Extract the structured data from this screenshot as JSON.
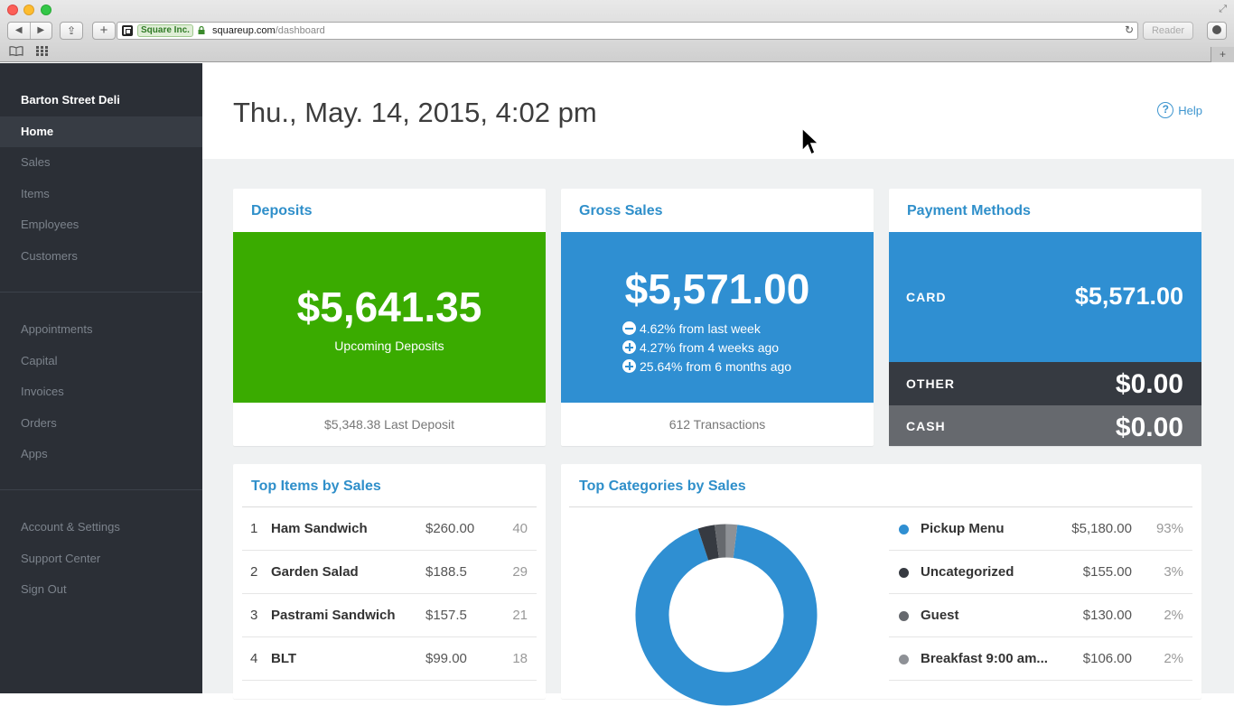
{
  "browser": {
    "site_identity": "Square Inc.",
    "url_domain": "squareup.com",
    "url_path": "/dashboard",
    "reader_label": "Reader",
    "back_glyph": "◀",
    "forward_glyph": "▶",
    "share_glyph": "⇪",
    "plus_glyph": "+",
    "reload_glyph": "↻",
    "fullscreen_glyph": "⤢",
    "newtab_glyph": "+"
  },
  "sidebar": {
    "business_name": "Barton Street Deli",
    "primary": [
      {
        "label": "Home",
        "active": true
      },
      {
        "label": "Sales"
      },
      {
        "label": "Items"
      },
      {
        "label": "Employees"
      },
      {
        "label": "Customers"
      }
    ],
    "secondary": [
      {
        "label": "Appointments"
      },
      {
        "label": "Capital"
      },
      {
        "label": "Invoices"
      },
      {
        "label": "Orders"
      },
      {
        "label": "Apps"
      }
    ],
    "tertiary": [
      {
        "label": "Account & Settings"
      },
      {
        "label": "Support Center"
      },
      {
        "label": "Sign Out"
      }
    ]
  },
  "header": {
    "title": "Thu., May. 14, 2015, 4:02 pm",
    "help_label": "Help",
    "help_glyph": "?"
  },
  "deposits": {
    "title": "Deposits",
    "amount": "$5,641.35",
    "subtitle": "Upcoming Deposits",
    "footer": "$5,348.38 Last Deposit",
    "color": "#3aab00"
  },
  "gross_sales": {
    "title": "Gross Sales",
    "amount": "$5,571.00",
    "changes": [
      {
        "direction": "down",
        "text": "4.62% from last week"
      },
      {
        "direction": "up",
        "text": "4.27% from 4 weeks ago"
      },
      {
        "direction": "up",
        "text": "25.64% from 6 months ago"
      }
    ],
    "footer": "612 Transactions",
    "color": "#2f8fd2"
  },
  "payment_methods": {
    "title": "Payment Methods",
    "rows": [
      {
        "label": "CARD",
        "amount": "$5,571.00",
        "color": "#2f8fd2"
      },
      {
        "label": "OTHER",
        "amount": "$0.00",
        "color": "#363a41"
      },
      {
        "label": "CASH",
        "amount": "$0.00",
        "color": "#66696e"
      }
    ]
  },
  "top_items": {
    "title": "Top Items by Sales",
    "rows": [
      {
        "rank": "1",
        "name": "Ham Sandwich",
        "amount": "$260.00",
        "count": "40"
      },
      {
        "rank": "2",
        "name": "Garden Salad",
        "amount": "$188.5",
        "count": "29"
      },
      {
        "rank": "3",
        "name": "Pastrami Sandwich",
        "amount": "$157.5",
        "count": "21"
      },
      {
        "rank": "4",
        "name": "BLT",
        "amount": "$99.00",
        "count": "18"
      }
    ]
  },
  "top_categories": {
    "title": "Top Categories by Sales",
    "rows": [
      {
        "name": "Pickup Menu",
        "amount": "$5,180.00",
        "pct": "93%",
        "color": "#2f8fd2"
      },
      {
        "name": "Uncategorized",
        "amount": "$155.00",
        "pct": "3%",
        "color": "#363a41"
      },
      {
        "name": "Guest",
        "amount": "$130.00",
        "pct": "2%",
        "color": "#66696e"
      },
      {
        "name": "Breakfast 9:00 am...",
        "amount": "$106.00",
        "pct": "2%",
        "color": "#8e9196"
      }
    ]
  },
  "chart_data": {
    "type": "pie",
    "categories": [
      "Pickup Menu",
      "Uncategorized",
      "Guest",
      "Breakfast 9:00 am..."
    ],
    "values": [
      93,
      3,
      2,
      2
    ],
    "title": "Top Categories by Sales",
    "colors": [
      "#2f8fd2",
      "#363a41",
      "#66696e",
      "#8e9196"
    ]
  }
}
